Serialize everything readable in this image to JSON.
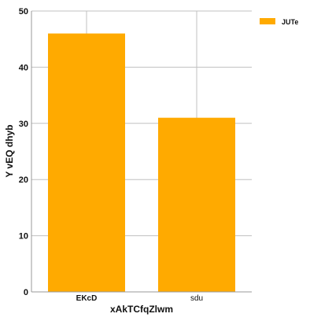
{
  "chart_data": {
    "type": "bar",
    "categories": [
      "EKcD",
      "sdu"
    ],
    "series": [
      {
        "name": "JUTe",
        "values": [
          46,
          31
        ]
      }
    ],
    "title": "",
    "xlabel": "xAkTCfqZlwm",
    "ylabel": "Y vEQ dhyb",
    "ylim": [
      0,
      50
    ],
    "yticks": [
      0,
      10,
      20,
      30,
      40,
      50
    ],
    "grid": true,
    "legend_position": "top-right",
    "colors": {
      "bar": "#FFAA00",
      "grid": "#c0c0c0",
      "axis": "#999999"
    }
  }
}
